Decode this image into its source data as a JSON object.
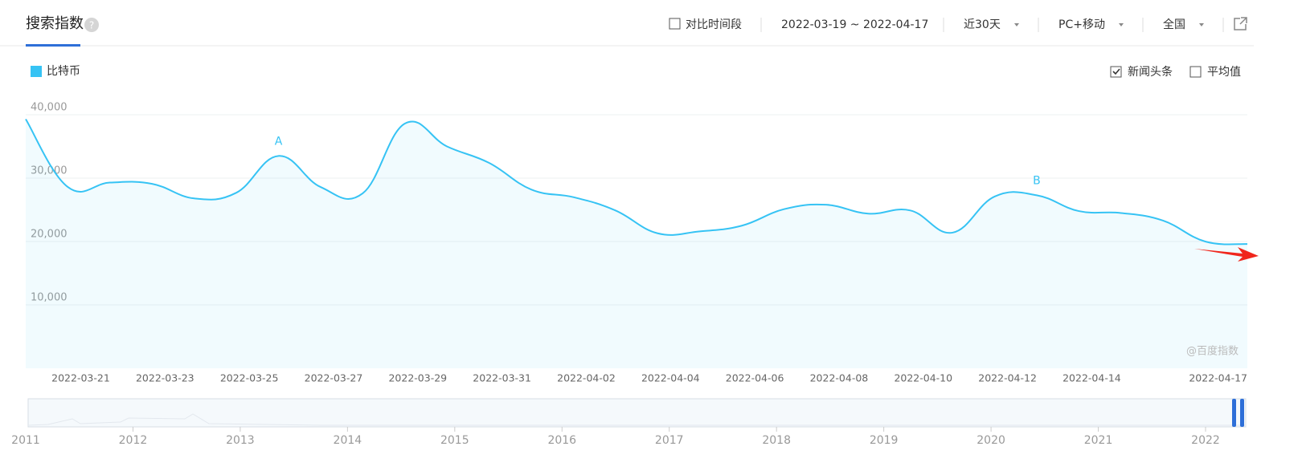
{
  "header": {
    "title": "搜索指数",
    "compare": "对比时间段",
    "date_range": "2022-03-19 ~ 2022-04-17",
    "period": "近30天",
    "device": "PC+移动",
    "region": "全国"
  },
  "options": {
    "news": "新闻头条",
    "news_checked": true,
    "average": "平均值",
    "average_checked": false
  },
  "chart_data": {
    "type": "line",
    "categories": [
      null,
      null,
      "2022-03-21",
      null,
      "2022-03-23",
      null,
      "2022-03-25",
      null,
      "2022-03-27",
      null,
      "2022-03-29",
      null,
      "2022-03-31",
      null,
      "2022-04-02",
      null,
      "2022-04-04",
      null,
      "2022-04-06",
      null,
      "2022-04-08",
      null,
      "2022-04-10",
      null,
      "2022-04-12",
      null,
      "2022-04-14",
      null,
      null,
      "2022-04-17"
    ],
    "series": [
      {
        "name": "比特币",
        "color": "#36c3f4",
        "values": [
          39300,
          28600,
          29300,
          29100,
          26800,
          27700,
          33500,
          28600,
          27600,
          38600,
          35000,
          32400,
          28200,
          27000,
          24900,
          21300,
          21600,
          22500,
          25100,
          25800,
          24400,
          24900,
          21400,
          27100,
          27300,
          24800,
          24500,
          23300,
          20000,
          19600
        ]
      }
    ],
    "ylim": [
      0,
      40000
    ],
    "yticks": [
      {
        "value": 10000,
        "label": "10,000"
      },
      {
        "value": 20000,
        "label": "20,000"
      },
      {
        "value": 30000,
        "label": "30,000"
      },
      {
        "value": 40000,
        "label": "40,000"
      }
    ],
    "grid": true,
    "annotations": [
      {
        "text": "A",
        "x": "2022-03-25"
      },
      {
        "text": "B",
        "x": "2022-04-12"
      }
    ],
    "watermark": "@百度指数"
  },
  "timeline": {
    "labels": [
      "2011",
      "2012",
      "2013",
      "2014",
      "2015",
      "2016",
      "2017",
      "2018",
      "2019",
      "2020",
      "2021",
      "2022"
    ]
  }
}
